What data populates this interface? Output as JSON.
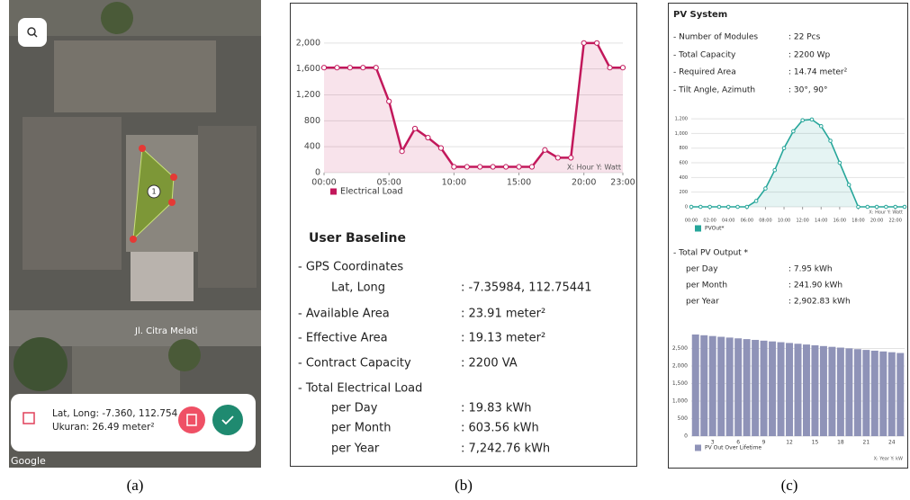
{
  "panel_a": {
    "polygon_marker": "1",
    "street_label": "Jl. Citra Melati",
    "info_position": "Lat, Long: -7.360, 112.754",
    "info_size": "Ukuran: 26.49 meter²",
    "map_attribution": "Google"
  },
  "user_baseline": {
    "title": "User Baseline",
    "rows": [
      {
        "label": "- GPS Coordinates"
      },
      {
        "label": "Lat, Long",
        "value": ": -7.35984, 112.75441"
      },
      {
        "label": "- Available Area",
        "value": ": 23.91 meter²"
      },
      {
        "label": "- Effective Area",
        "value": ": 19.13 meter²"
      },
      {
        "label": "- Contract Capacity",
        "value": ": 2200 VA"
      },
      {
        "label": "- Total Electrical Load"
      },
      {
        "label": "per Day",
        "value": ": 19.83 kWh"
      },
      {
        "label": "per Month",
        "value": ": 603.56 kWh"
      },
      {
        "label": "per Year",
        "value": ": 7,242.76 kWh"
      }
    ]
  },
  "pv_system": {
    "title": "PV System",
    "rows": [
      {
        "label": "- Number of Modules",
        "value": ": 22 Pcs"
      },
      {
        "label": "- Total Capacity",
        "value": ": 2200 Wp"
      },
      {
        "label": "- Required Area",
        "value": ": 14.74 meter²"
      },
      {
        "label": "- Tilt Angle, Azimuth",
        "value": ": 30°, 90°"
      }
    ],
    "output_rows": [
      {
        "label": "- Total PV Output *"
      },
      {
        "label": "per Day",
        "value": ": 7.95 kWh"
      },
      {
        "label": "per Month",
        "value": ": 241.90 kWh"
      },
      {
        "label": "per Year",
        "value": ": 2,902.83 kWh"
      }
    ]
  },
  "captions": [
    "(a)",
    "(b)",
    "(c)"
  ],
  "chart_data": [
    {
      "type": "line",
      "axis_note": "X: Hour Y: Watt",
      "x": [
        0,
        1,
        2,
        3,
        4,
        5,
        6,
        7,
        8,
        9,
        10,
        11,
        12,
        13,
        14,
        15,
        16,
        17,
        18,
        19,
        20,
        21,
        22,
        23
      ],
      "series": [
        {
          "name": "Electrical Load",
          "color": "#c2185b",
          "values": [
            1620,
            1620,
            1620,
            1620,
            1620,
            1100,
            330,
            680,
            540,
            380,
            90,
            90,
            90,
            90,
            90,
            90,
            90,
            350,
            230,
            230,
            2000,
            2000,
            1620,
            1620
          ]
        }
      ],
      "xlim": [
        0,
        23
      ],
      "xticks": [
        {
          "value": 0,
          "label": "00:00"
        },
        {
          "value": 5,
          "label": "05:00"
        },
        {
          "value": 10,
          "label": "10:00"
        },
        {
          "value": 15,
          "label": "15:00"
        },
        {
          "value": 20,
          "label": "20:00"
        },
        {
          "value": 23,
          "label": "23:00"
        }
      ],
      "ylim": [
        0,
        2150
      ],
      "yticks": [
        0,
        400,
        800,
        {
          "value": 1200,
          "label": "1,200"
        },
        {
          "value": 1600,
          "label": "1,600"
        },
        {
          "value": 2000,
          "label": "2,000"
        }
      ],
      "grid": true
    },
    {
      "type": "line",
      "axis_note": "X: Hour Y: Watt",
      "x": [
        0,
        1,
        2,
        3,
        4,
        5,
        6,
        7,
        8,
        9,
        10,
        11,
        12,
        13,
        14,
        15,
        16,
        17,
        18,
        19,
        20,
        21,
        22,
        23
      ],
      "series": [
        {
          "name": "PVOut*",
          "color": "#26a69a",
          "values": [
            0,
            0,
            0,
            0,
            0,
            0,
            0,
            80,
            250,
            500,
            800,
            1030,
            1180,
            1190,
            1100,
            900,
            600,
            300,
            0,
            0,
            0,
            0,
            0,
            0
          ]
        }
      ],
      "xlim": [
        0,
        23
      ],
      "xticks": [
        {
          "value": 0,
          "label": "00:00"
        },
        {
          "value": 2,
          "label": "02:00"
        },
        {
          "value": 4,
          "label": "04:00"
        },
        {
          "value": 6,
          "label": "06:00"
        },
        {
          "value": 8,
          "label": "08:00"
        },
        {
          "value": 10,
          "label": "10:00"
        },
        {
          "value": 12,
          "label": "12:00"
        },
        {
          "value": 14,
          "label": "14:00"
        },
        {
          "value": 16,
          "label": "16:00"
        },
        {
          "value": 18,
          "label": "18:00"
        },
        {
          "value": 20,
          "label": "20:00"
        },
        {
          "value": 22,
          "label": "22:00"
        }
      ],
      "ylim": [
        0,
        1250
      ],
      "yticks": [
        0,
        200,
        400,
        600,
        800,
        {
          "value": 1000,
          "label": "1,000"
        },
        {
          "value": 1200,
          "label": "1,200"
        }
      ],
      "grid": true
    },
    {
      "type": "bar",
      "axis_note": "X: Year Y: kW",
      "categories": [
        null,
        null,
        "3",
        null,
        null,
        "6",
        null,
        null,
        "9",
        null,
        null,
        "12",
        null,
        null,
        "15",
        null,
        null,
        "18",
        null,
        null,
        "21",
        null,
        null,
        "24",
        null
      ],
      "series": [
        {
          "name": "PV Out Over Lifetime",
          "color": "#8f93b8",
          "values": [
            2900,
            2878,
            2856,
            2834,
            2812,
            2790,
            2768,
            2746,
            2724,
            2702,
            2680,
            2658,
            2636,
            2614,
            2592,
            2570,
            2548,
            2526,
            2504,
            2482,
            2460,
            2438,
            2416,
            2394,
            2372
          ]
        }
      ],
      "ylim": [
        0,
        2950
      ],
      "yticks": [
        0,
        500,
        {
          "value": 1000,
          "label": "1,000"
        },
        {
          "value": 1500,
          "label": "1,500"
        },
        {
          "value": 2000,
          "label": "2,000"
        },
        {
          "value": 2500,
          "label": "2,500"
        }
      ],
      "grid": true
    }
  ]
}
